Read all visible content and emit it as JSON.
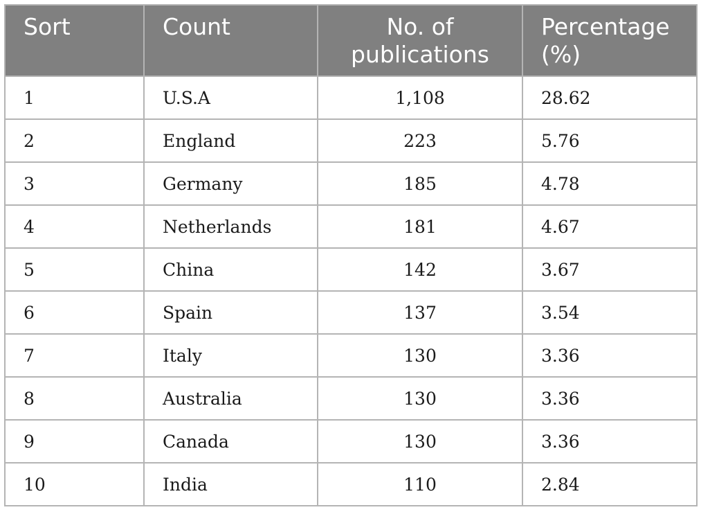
{
  "table": {
    "headers": {
      "sort": "Sort",
      "count": "Count",
      "publications": "No. of publications",
      "percentage": "Percentage (%)"
    },
    "rows": [
      {
        "sort": "1",
        "country": "U.S.A",
        "publications": "1,108",
        "percentage": "28.62"
      },
      {
        "sort": "2",
        "country": "England",
        "publications": "223",
        "percentage": "5.76"
      },
      {
        "sort": "3",
        "country": "Germany",
        "publications": "185",
        "percentage": "4.78"
      },
      {
        "sort": "4",
        "country": "Netherlands",
        "publications": "181",
        "percentage": "4.67"
      },
      {
        "sort": "5",
        "country": "China",
        "publications": "142",
        "percentage": "3.67"
      },
      {
        "sort": "6",
        "country": "Spain",
        "publications": "137",
        "percentage": "3.54"
      },
      {
        "sort": "7",
        "country": "Italy",
        "publications": "130",
        "percentage": "3.36"
      },
      {
        "sort": "8",
        "country": "Australia",
        "publications": "130",
        "percentage": "3.36"
      },
      {
        "sort": "9",
        "country": "Canada",
        "publications": "130",
        "percentage": "3.36"
      },
      {
        "sort": "10",
        "country": "India",
        "publications": "110",
        "percentage": "2.84"
      }
    ]
  }
}
